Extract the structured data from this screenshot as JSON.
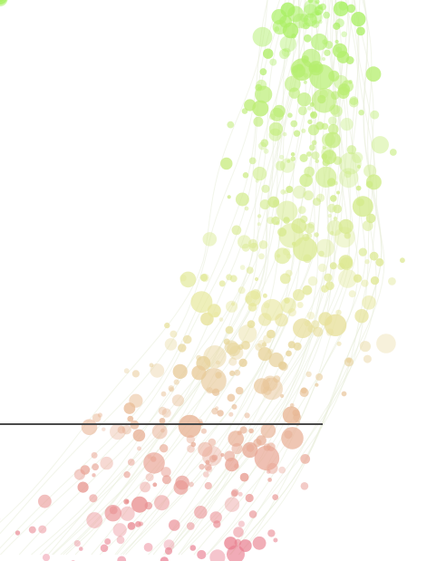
{
  "scene": {
    "background": "#ffffff",
    "colors": {
      "top": "#a6f060",
      "middle": "#e7e79b",
      "bottom": "#e9788e",
      "trail": "#e8ecd8",
      "marker_line": "#4a4a4a"
    }
  }
}
